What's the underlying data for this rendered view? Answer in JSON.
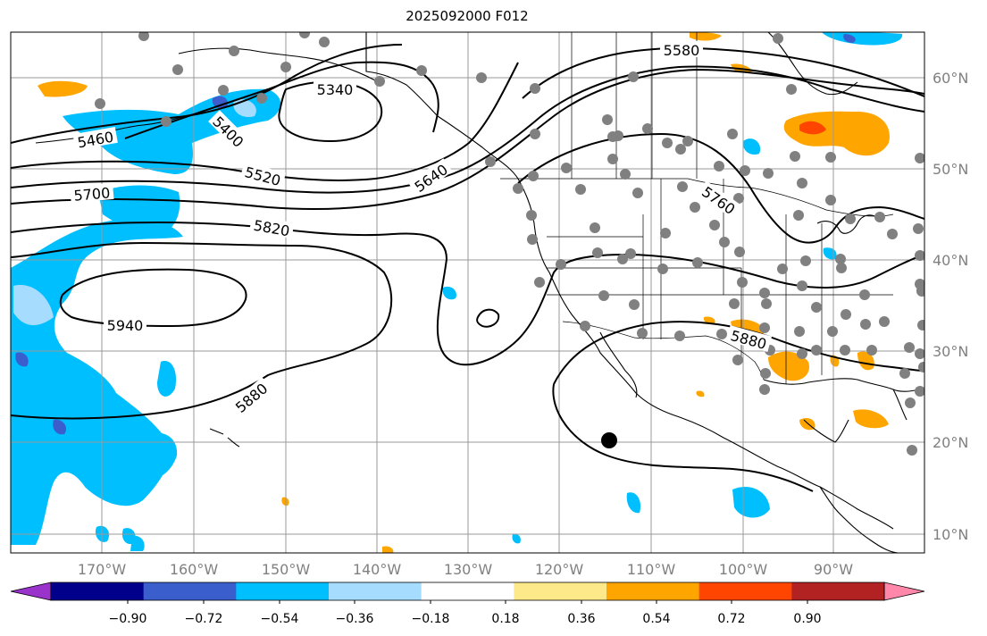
{
  "title": "2025092000 F012",
  "colors": {
    "colorbar": [
      "#9933cc",
      "#00008b",
      "#3a5fcd",
      "#00bfff",
      "#a6ddff",
      "#ffffff",
      "#fee98a",
      "#ffa500",
      "#ff4500",
      "#b22222",
      "#ff88aa"
    ],
    "contour": "#000000",
    "grid": "#9a9a9a",
    "station": "#808080",
    "coast": "#000000"
  },
  "axes": {
    "lon_labels": [
      "170°W",
      "160°W",
      "150°W",
      "140°W",
      "130°W",
      "120°W",
      "110°W",
      "100°W",
      "90°W"
    ],
    "lat_labels": [
      "60°N",
      "50°N",
      "40°N",
      "30°N",
      "20°N",
      "10°N"
    ]
  },
  "colorbar": {
    "ticks": [
      "−0.90",
      "−0.72",
      "−0.54",
      "−0.36",
      "−0.18",
      "0.18",
      "0.36",
      "0.54",
      "0.72",
      "0.90"
    ]
  },
  "contour_labels": [
    "5580",
    "5340",
    "5400",
    "5460",
    "5520",
    "5640",
    "5700",
    "5760",
    "5820",
    "5880",
    "5940",
    "5880"
  ],
  "icons": {
    "stations": "gray-station-dot-icon",
    "marker": "black-circle-marker-icon"
  }
}
